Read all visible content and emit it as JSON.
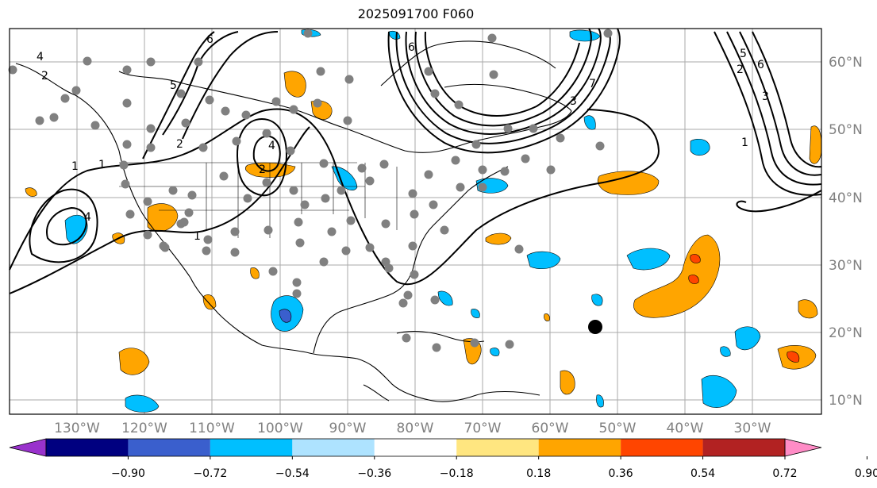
{
  "title": "2025091700 F060",
  "lat_labels": [
    "60°N",
    "50°N",
    "40°N",
    "30°N",
    "20°N",
    "10°N"
  ],
  "lon_labels": [
    "130°W",
    "120°W",
    "110°W",
    "100°W",
    "90°W",
    "80°W",
    "70°W",
    "60°W",
    "50°W",
    "40°W",
    "30°W"
  ],
  "colorbar": {
    "colors": [
      "#9932cc",
      "#000080",
      "#3a5fcd",
      "#00bfff",
      "#aee3ff",
      "#ffffff",
      "#ffe680",
      "#ffa500",
      "#ff4500",
      "#b22222",
      "#ff8cc6"
    ],
    "labels": [
      "−0.90",
      "−0.72",
      "−0.54",
      "−0.36",
      "−0.18",
      "0.18",
      "0.36",
      "0.54",
      "0.72",
      "0.90"
    ]
  },
  "contour_labels": [
    "4",
    "6",
    "5",
    "2",
    "1",
    "4",
    "2",
    "1",
    "6",
    "7",
    "3",
    "2",
    "4",
    "6",
    "5",
    "3",
    "1",
    "2",
    "1"
  ]
}
